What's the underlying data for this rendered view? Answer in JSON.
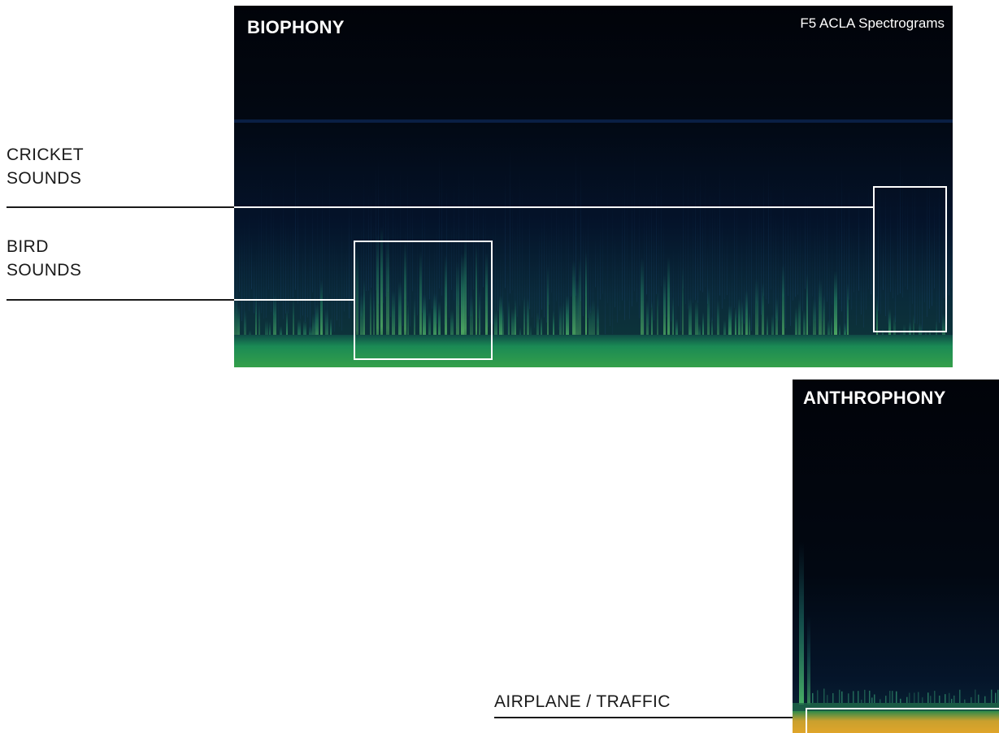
{
  "biophony": {
    "title": "BIOPHONY",
    "source": "F5 ACLA Spectrograms"
  },
  "anthrophony": {
    "title": "ANTHROPHONY"
  },
  "callouts": {
    "cricket": {
      "line1": "CRICKET",
      "line2": "SOUNDS"
    },
    "bird": {
      "line1": "BIRD",
      "line2": "SOUNDS"
    },
    "airplane": {
      "text": "AIRPLANE / TRAFFIC"
    }
  },
  "colors": {
    "background": "#ffffff",
    "spectrogram_background": "#02060f",
    "spectrogram_low": "#0e2a3a",
    "spectrogram_mid": "#1f8a5a",
    "spectrogram_high": "#6fdc7a",
    "anthrophony_band": "#e0a52a",
    "annotation_box": "#ffffff",
    "label_text": "#1a1a1a"
  }
}
